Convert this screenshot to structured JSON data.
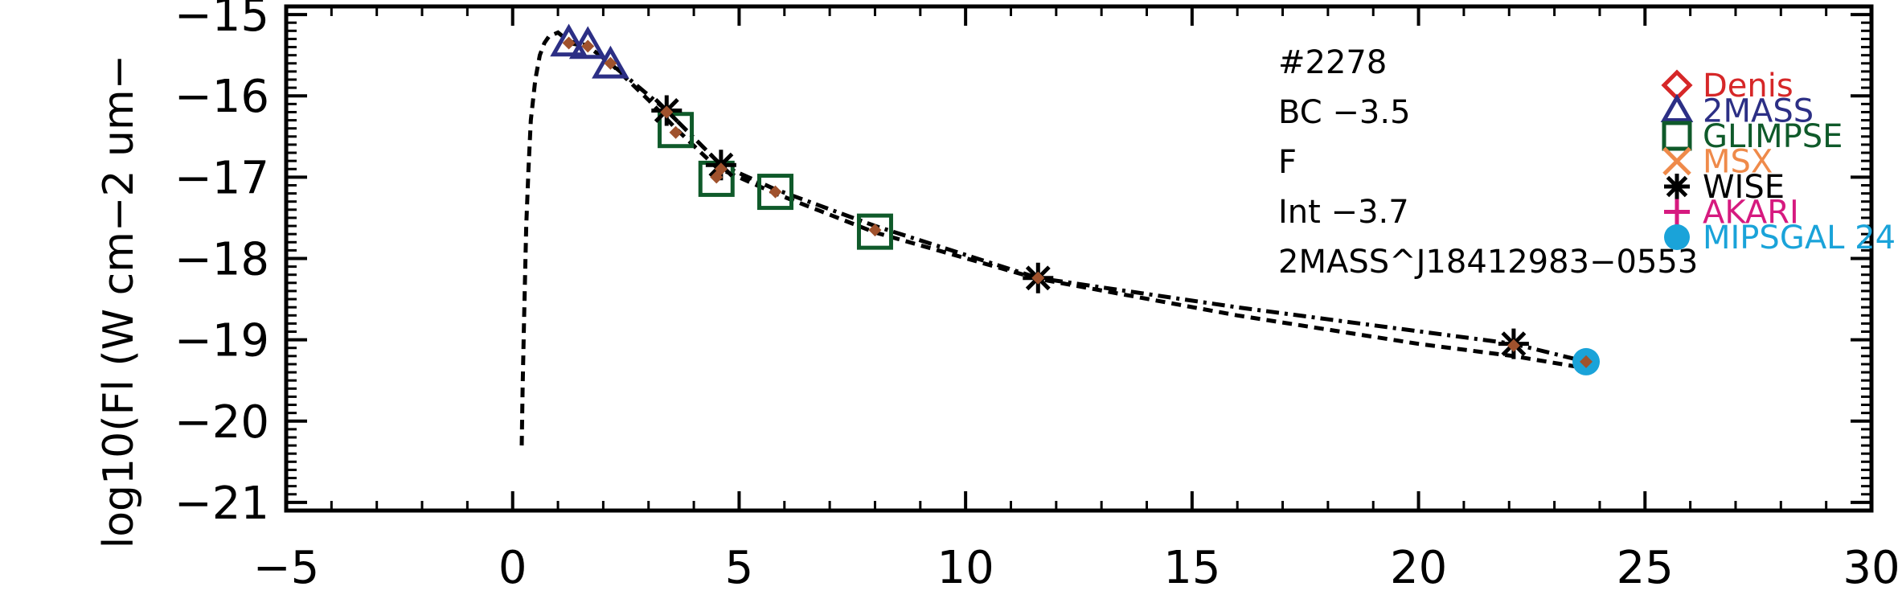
{
  "chart_data": {
    "type": "scatter",
    "title": "",
    "ylabel": "log10(Fl (W cm−2 um−",
    "xlabel": "",
    "xlim": [
      -5,
      30
    ],
    "ylim": [
      -21.1,
      -14.9
    ],
    "x_ticks": [
      -5,
      0,
      5,
      10,
      15,
      20,
      25,
      30
    ],
    "x_tick_labels": [
      "−5",
      "0",
      "5",
      "10",
      "15",
      "20",
      "25",
      "30"
    ],
    "y_ticks": [
      -15,
      -16,
      -17,
      -18,
      -19,
      -20,
      -21
    ],
    "y_tick_labels": [
      "−15",
      "−16",
      "−17",
      "−18",
      "−19",
      "−20",
      "−21"
    ],
    "grid": false,
    "legend_position": "top-right",
    "annotations": [
      "#2278",
      "BC  −3.5",
      "F",
      "Int  −3.7",
      "2MASS^J18412983−0553"
    ],
    "legend": [
      {
        "name": "Denis",
        "marker": "diamond",
        "color": "#d62728"
      },
      {
        "name": "2MASS",
        "marker": "triangle",
        "color": "#2c2f85"
      },
      {
        "name": "GLIMPSE",
        "marker": "square",
        "color": "#0f5a2a"
      },
      {
        "name": "MSX",
        "marker": "x",
        "color": "#ef8a4a"
      },
      {
        "name": "WISE",
        "marker": "asterisk",
        "color": "#000000"
      },
      {
        "name": "AKARI",
        "marker": "plus",
        "color": "#d61a7f"
      },
      {
        "name": "MIPSGAL 24",
        "marker": "circle",
        "color": "#1aa3d9"
      }
    ],
    "series": [
      {
        "name": "2MASS",
        "marker": "triangle",
        "color": "#2c2f85",
        "x": [
          1.24,
          1.66,
          2.16
        ],
        "y": [
          -15.35,
          -15.38,
          -15.62
        ]
      },
      {
        "name": "GLIMPSE",
        "marker": "square",
        "color": "#0f5a2a",
        "x": [
          3.6,
          4.5,
          5.8,
          8.0
        ],
        "y": [
          -16.42,
          -17.02,
          -17.18,
          -17.67
        ]
      },
      {
        "name": "WISE",
        "marker": "asterisk",
        "color": "#000000",
        "x": [
          3.4,
          4.6,
          11.6,
          22.1
        ],
        "y": [
          -16.18,
          -16.85,
          -18.24,
          -19.05
        ]
      },
      {
        "name": "MIPSGAL 24",
        "marker": "circle",
        "color": "#1aa3d9",
        "x": [
          23.7
        ],
        "y": [
          -19.27
        ]
      },
      {
        "name": "model fluxes",
        "marker": "small-diamond",
        "color": "#a0522d",
        "x": [
          1.24,
          1.66,
          2.16,
          3.4,
          3.6,
          4.5,
          4.6,
          5.8,
          8.0,
          11.6,
          22.1,
          23.7
        ],
        "y": [
          -15.35,
          -15.39,
          -15.6,
          -16.2,
          -16.45,
          -17.0,
          -16.9,
          -17.18,
          -17.65,
          -18.24,
          -19.07,
          -19.27
        ]
      }
    ],
    "curves": [
      {
        "style": "dashed",
        "x": [
          0.2,
          0.22,
          0.25,
          0.3,
          0.35,
          0.4,
          0.5,
          0.6,
          0.7,
          0.8,
          1.0,
          1.24,
          1.66,
          2.16,
          3.0,
          3.6,
          4.5,
          5.8,
          8.0,
          11.6,
          16.0,
          20.0,
          22.1,
          23.7
        ],
        "y": [
          -20.3,
          -19.6,
          -18.8,
          -17.6,
          -16.9,
          -16.3,
          -15.8,
          -15.5,
          -15.35,
          -15.27,
          -15.22,
          -15.33,
          -15.38,
          -15.6,
          -16.05,
          -16.4,
          -16.88,
          -17.2,
          -17.68,
          -18.25,
          -18.7,
          -19.05,
          -19.2,
          -19.35
        ]
      },
      {
        "style": "dash-dot",
        "x": [
          1.24,
          1.66,
          2.16,
          3.4,
          4.6,
          5.8,
          8.0,
          11.6,
          16.0,
          22.1,
          23.7
        ],
        "y": [
          -15.35,
          -15.39,
          -15.6,
          -16.18,
          -16.85,
          -17.15,
          -17.6,
          -18.24,
          -18.6,
          -19.05,
          -19.27
        ]
      }
    ]
  }
}
